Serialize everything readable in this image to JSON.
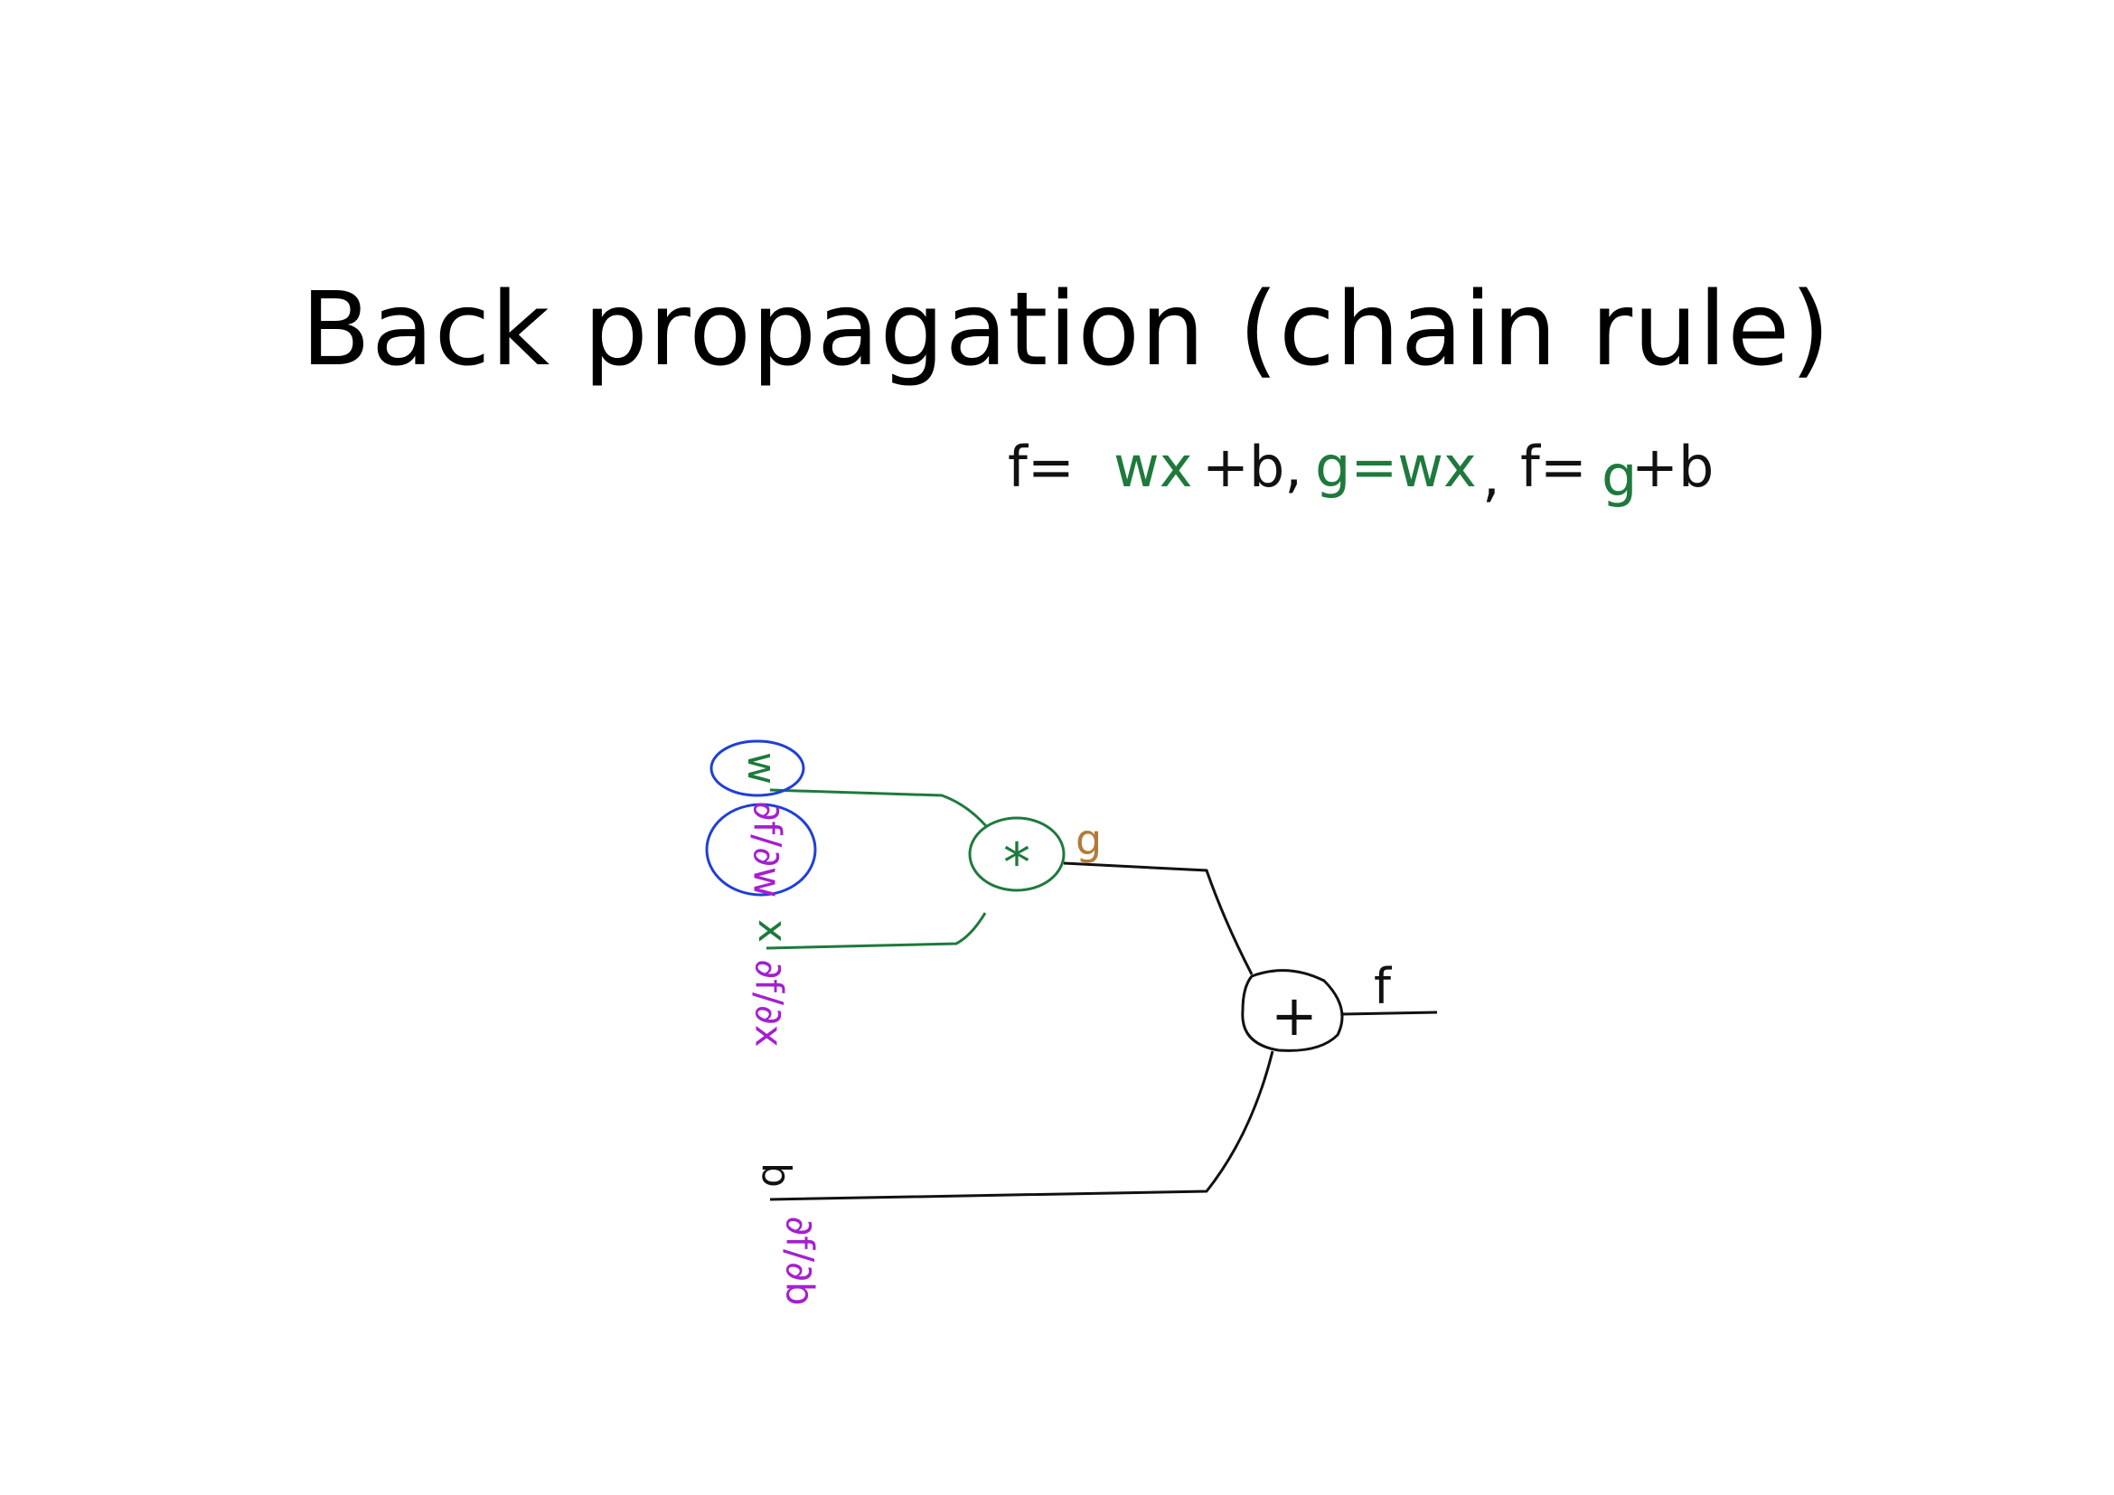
{
  "title": "Back propagation (chain rule)",
  "equation": {
    "part1_f": "f=",
    "part1_wx": "wx",
    "part1_b": "+b,",
    "part2": "g=wx",
    "sep": ",",
    "part3_f": "f=",
    "part3_g": "g",
    "part3_b": "+b"
  },
  "nodes": {
    "multiply": "*",
    "add": "+"
  },
  "labels": {
    "w": "w",
    "x": "x",
    "b": "b",
    "g": "g",
    "f": "f"
  },
  "gradients": {
    "dw": "∂f/∂w",
    "dx": "∂f/∂x",
    "db": "∂f/∂b"
  },
  "colors": {
    "black": "#111111",
    "green": "#1e7a3c",
    "purple": "#a51fd0",
    "blue": "#1f3fd6",
    "brown": "#b37a3a"
  }
}
